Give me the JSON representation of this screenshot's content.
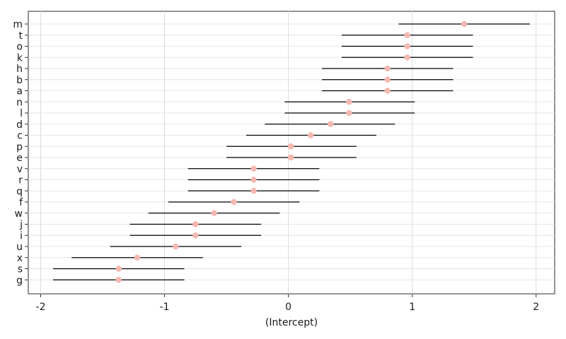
{
  "chart_data": {
    "type": "interval",
    "xlabel": "(Intercept)",
    "ylabel": "",
    "xlim": [
      -2.1,
      2.15
    ],
    "x_ticks": [
      -2,
      -1,
      0,
      1,
      2
    ],
    "x_tick_labels": [
      "-2",
      "-1",
      "0",
      "1",
      "2"
    ],
    "grid": true,
    "point_color": "#f4b8b0",
    "interval_color": "#000000",
    "categories": [
      "m",
      "t",
      "o",
      "k",
      "h",
      "b",
      "a",
      "n",
      "l",
      "d",
      "c",
      "p",
      "e",
      "v",
      "r",
      "q",
      "f",
      "w",
      "j",
      "i",
      "u",
      "x",
      "s",
      "g"
    ],
    "estimates": [
      1.42,
      0.96,
      0.96,
      0.96,
      0.8,
      0.8,
      0.8,
      0.49,
      0.49,
      0.34,
      0.18,
      0.02,
      0.02,
      -0.28,
      -0.28,
      -0.28,
      -0.44,
      -0.6,
      -0.75,
      -0.75,
      -0.91,
      -1.22,
      -1.37,
      -1.37
    ],
    "lower": [
      0.89,
      0.43,
      0.43,
      0.43,
      0.27,
      0.27,
      0.27,
      -0.03,
      -0.03,
      -0.19,
      -0.34,
      -0.5,
      -0.5,
      -0.81,
      -0.81,
      -0.81,
      -0.97,
      -1.13,
      -1.28,
      -1.28,
      -1.44,
      -1.75,
      -1.9,
      -1.9
    ],
    "upper": [
      1.95,
      1.49,
      1.49,
      1.49,
      1.33,
      1.33,
      1.33,
      1.02,
      1.02,
      0.86,
      0.71,
      0.55,
      0.55,
      0.25,
      0.25,
      0.25,
      0.09,
      -0.07,
      -0.22,
      -0.22,
      -0.38,
      -0.69,
      -0.84,
      -0.84
    ]
  }
}
